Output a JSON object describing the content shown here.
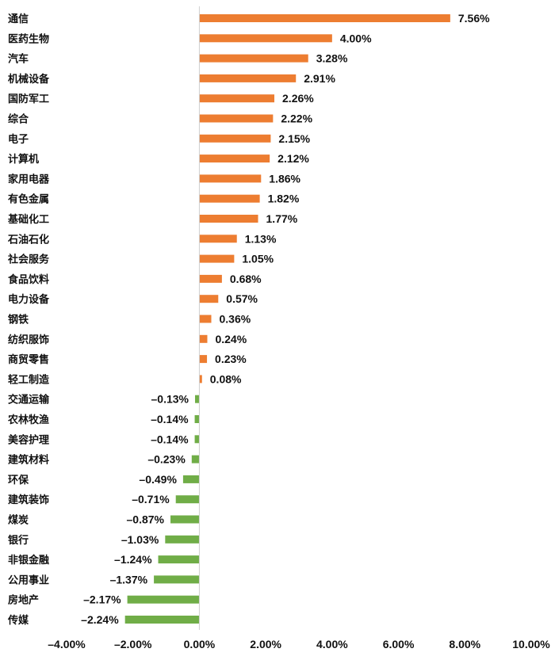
{
  "chart_data": {
    "type": "bar",
    "orientation": "horizontal",
    "title": "",
    "xlabel": "",
    "ylabel": "",
    "categories": [
      "通信",
      "医药生物",
      "汽车",
      "机械设备",
      "国防军工",
      "综合",
      "电子",
      "计算机",
      "家用电器",
      "有色金属",
      "基础化工",
      "石油石化",
      "社会服务",
      "食品饮料",
      "电力设备",
      "钢铁",
      "纺织服饰",
      "商贸零售",
      "轻工制造",
      "交通运输",
      "农林牧渔",
      "美容护理",
      "建筑材料",
      "环保",
      "建筑装饰",
      "煤炭",
      "银行",
      "非银金融",
      "公用事业",
      "房地产",
      "传媒"
    ],
    "values": [
      7.56,
      4.0,
      3.28,
      2.91,
      2.26,
      2.22,
      2.15,
      2.12,
      1.86,
      1.82,
      1.77,
      1.13,
      1.05,
      0.68,
      0.57,
      0.36,
      0.24,
      0.23,
      0.08,
      -0.13,
      -0.14,
      -0.14,
      -0.23,
      -0.49,
      -0.71,
      -0.87,
      -1.03,
      -1.24,
      -1.37,
      -2.17,
      -2.24
    ],
    "value_labels": [
      "7.56%",
      "4.00%",
      "3.28%",
      "2.91%",
      "2.26%",
      "2.22%",
      "2.15%",
      "2.12%",
      "1.86%",
      "1.82%",
      "1.77%",
      "1.13%",
      "1.05%",
      "0.68%",
      "0.57%",
      "0.36%",
      "0.24%",
      "0.23%",
      "0.08%",
      "–0.13%",
      "–0.14%",
      "–0.14%",
      "–0.23%",
      "–0.49%",
      "–0.71%",
      "–0.87%",
      "–1.03%",
      "–1.24%",
      "–1.37%",
      "–2.17%",
      "–2.24%"
    ],
    "xlim": [
      -4,
      10
    ],
    "x_ticks": [
      -4,
      -2,
      0,
      2,
      4,
      6,
      8,
      10
    ],
    "x_tick_labels": [
      "–4.00%",
      "–2.00%",
      "0.00%",
      "2.00%",
      "4.00%",
      "6.00%",
      "8.00%",
      "10.00%"
    ],
    "grid": false,
    "legend": "none",
    "colors": {
      "positive": "#ED7D31",
      "negative": "#70AD47"
    }
  }
}
